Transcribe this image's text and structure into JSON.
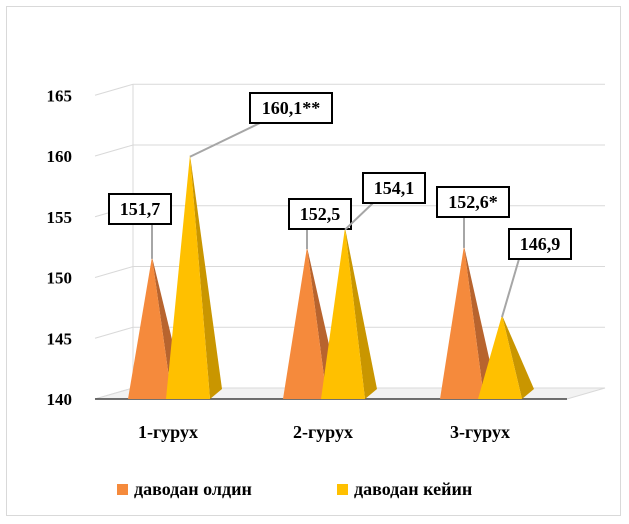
{
  "chart_data": {
    "type": "bar",
    "style": "3d-pyramid",
    "categories": [
      "1-гурух",
      "2-гурух",
      "3-гурух"
    ],
    "series": [
      {
        "name": "даводан олдин",
        "color": "#F58A3C",
        "shade": "#B8642E",
        "values": [
          151.7,
          152.5,
          152.6
        ],
        "labels": [
          "151,7",
          "152,5",
          "152,6*"
        ]
      },
      {
        "name": "даводан кейин",
        "color": "#FFC000",
        "shade": "#C99600",
        "values": [
          160.1,
          154.1,
          146.9
        ],
        "labels": [
          "160,1**",
          "154,1",
          "146,9"
        ]
      }
    ],
    "ylim": [
      140,
      165
    ],
    "yticks": [
      "140",
      "145",
      "150",
      "155",
      "160",
      "165"
    ],
    "ytick_values": [
      140,
      145,
      150,
      155,
      160,
      165
    ],
    "grid": true,
    "legend_position": "bottom"
  }
}
